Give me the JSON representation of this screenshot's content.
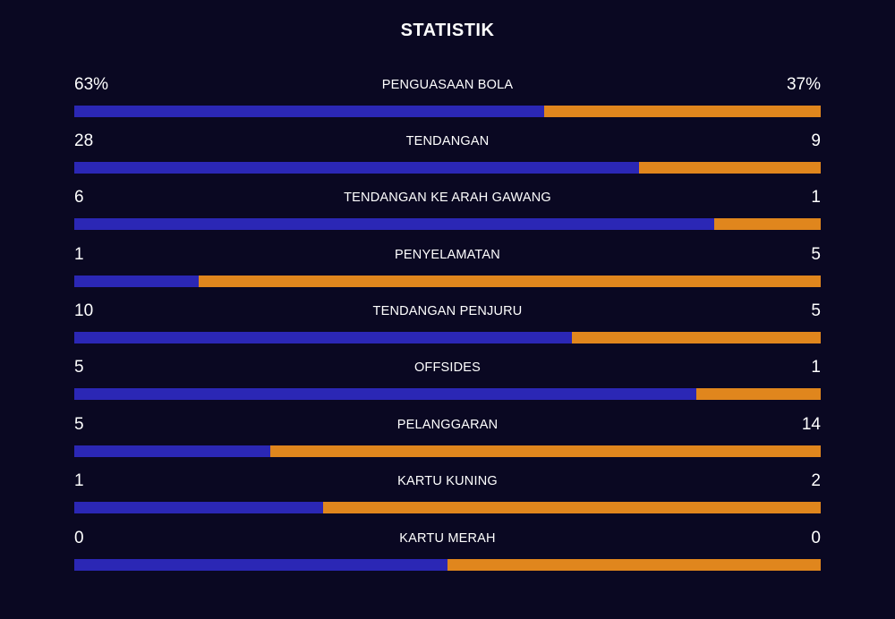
{
  "title": "STATISTIK",
  "colors": {
    "home": "#2b27b5",
    "away": "#e0861d",
    "background": "#0a0822"
  },
  "stats": [
    {
      "label": "PENGUASAAN BOLA",
      "home": "63%",
      "away": "37%",
      "home_share": 0.63
    },
    {
      "label": "TENDANGAN",
      "home": "28",
      "away": "9",
      "home_share": 0.757
    },
    {
      "label": "TENDANGAN KE ARAH GAWANG",
      "home": "6",
      "away": "1",
      "home_share": 0.857
    },
    {
      "label": "PENYELAMATAN",
      "home": "1",
      "away": "5",
      "home_share": 0.167
    },
    {
      "label": "TENDANGAN PENJURU",
      "home": "10",
      "away": "5",
      "home_share": 0.667
    },
    {
      "label": "OFFSIDES",
      "home": "5",
      "away": "1",
      "home_share": 0.833
    },
    {
      "label": "PELANGGARAN",
      "home": "5",
      "away": "14",
      "home_share": 0.263
    },
    {
      "label": "KARTU KUNING",
      "home": "1",
      "away": "2",
      "home_share": 0.333
    },
    {
      "label": "KARTU MERAH",
      "home": "0",
      "away": "0",
      "home_share": 0.5
    }
  ]
}
